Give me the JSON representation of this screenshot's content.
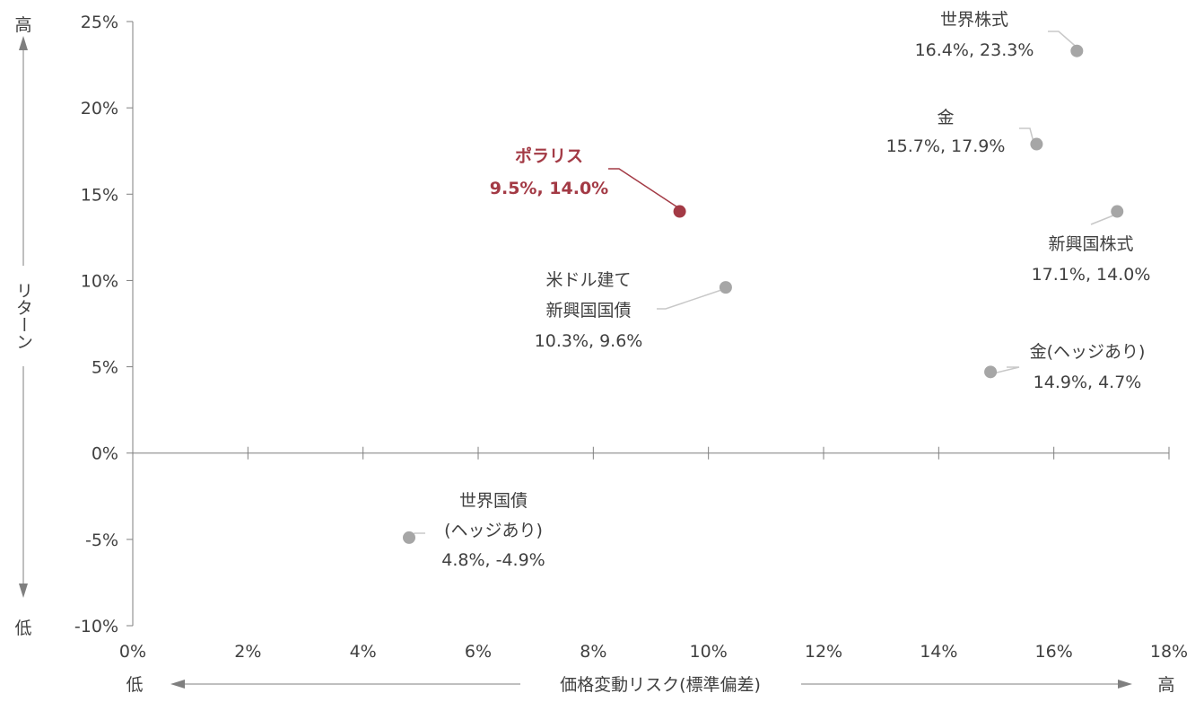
{
  "chart_data": {
    "type": "scatter",
    "title": "",
    "xlabel": "価格変動リスク(標準偏差)",
    "ylabel": "リターン",
    "xlim": [
      0,
      18
    ],
    "ylim": [
      -10,
      25
    ],
    "x_ticks": [
      0,
      2,
      4,
      6,
      8,
      10,
      12,
      14,
      16,
      18
    ],
    "y_ticks": [
      -10,
      -5,
      0,
      5,
      10,
      15,
      20,
      25
    ],
    "x_tick_labels": [
      "0%",
      "2%",
      "4%",
      "6%",
      "8%",
      "10%",
      "12%",
      "14%",
      "16%",
      "18%"
    ],
    "y_tick_labels": [
      "-10%",
      "-5%",
      "0%",
      "5%",
      "10%",
      "15%",
      "20%",
      "25%"
    ],
    "x_axis_low_label": "低",
    "x_axis_high_label": "高",
    "y_axis_low_label": "低",
    "y_axis_high_label": "高",
    "grid": false,
    "legend": "none",
    "colors": {
      "highlight": "#a33a45",
      "point": "#a6a6a6",
      "axis": "#7f7f7f",
      "text": "#404040"
    },
    "points": [
      {
        "name_lines": [
          "ポラリス"
        ],
        "value_label": "9.5%, 14.0%",
        "x": 9.5,
        "y": 14.0,
        "highlight": true
      },
      {
        "name_lines": [
          "世界株式"
        ],
        "value_label": "16.4%, 23.3%",
        "x": 16.4,
        "y": 23.3,
        "highlight": false
      },
      {
        "name_lines": [
          "金"
        ],
        "value_label": "15.7%, 17.9%",
        "x": 15.7,
        "y": 17.9,
        "highlight": false
      },
      {
        "name_lines": [
          "新興国株式"
        ],
        "value_label": "17.1%, 14.0%",
        "x": 17.1,
        "y": 14.0,
        "highlight": false
      },
      {
        "name_lines": [
          "米ドル建て",
          "新興国国債"
        ],
        "value_label": "10.3%, 9.6%",
        "x": 10.3,
        "y": 9.6,
        "highlight": false
      },
      {
        "name_lines": [
          "金(ヘッジあり)"
        ],
        "value_label": "14.9%, 4.7%",
        "x": 14.9,
        "y": 4.7,
        "highlight": false
      },
      {
        "name_lines": [
          "世界国債",
          "(ヘッジあり)"
        ],
        "value_label": "4.8%, -4.9%",
        "x": 4.8,
        "y": -4.9,
        "highlight": false
      }
    ]
  }
}
